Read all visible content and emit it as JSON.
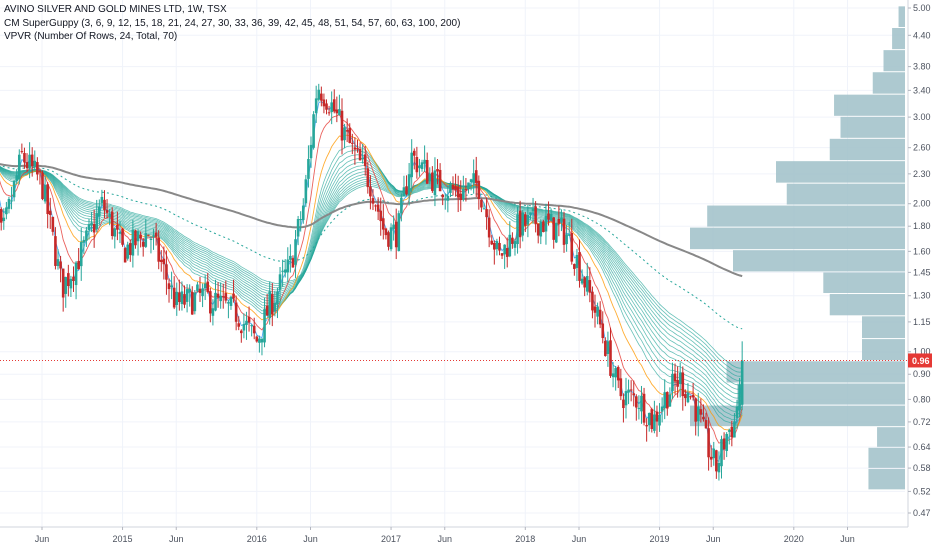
{
  "legend": {
    "title": "AVINO SILVER AND GOLD MINES LTD, 1W, TSX",
    "indicator1": "CM SuperGuppy (3, 6, 9, 12, 15, 18, 21, 24, 27, 30, 33, 36, 39, 42, 45, 48, 51, 54, 57, 60, 63, 100, 200)",
    "indicator2": "VPVR (Number Of Rows, 24, Total, 70)"
  },
  "colors": {
    "up": "#26a69a",
    "down": "#c62828",
    "vpvr": "#9fc0c8",
    "ema200": "#888888",
    "ema100": "#26a69a",
    "price_line": "#e53935",
    "guppy_fast": [
      "#2196f3",
      "#e53935",
      "#ff9800"
    ],
    "guppy_slow": "#26a69a"
  },
  "chart_data": {
    "type": "candlestick",
    "symbol": "AVINO SILVER AND GOLD MINES LTD",
    "interval": "1W",
    "exchange": "TSX",
    "y_axis": {
      "scale": "log",
      "range": [
        0.44,
        5.2
      ],
      "ticks": [
        "5.00",
        "4.40",
        "3.80",
        "3.40",
        "3.00",
        "2.60",
        "2.30",
        "2.00",
        "1.80",
        "1.60",
        "1.45",
        "1.30",
        "1.15",
        "1.00",
        "0.90",
        "0.80",
        "0.72",
        "0.64",
        "0.58",
        "0.52",
        "0.47"
      ]
    },
    "x_axis": {
      "ticks": [
        "Jun",
        "2015",
        "Jun",
        "2016",
        "Jun",
        "2017",
        "Jun",
        "2018",
        "Jun",
        "2019",
        "Jun",
        "2020",
        "Jun"
      ]
    },
    "last_price": 0.96,
    "last_price_label": "0.96",
    "price_anchors": [
      {
        "date": "2014.00",
        "value": 2.6
      },
      {
        "date": "2014.10",
        "value": 1.7
      },
      {
        "date": "2014.25",
        "value": 2.5
      },
      {
        "date": "2014.40",
        "value": 2.2
      },
      {
        "date": "2014.55",
        "value": 1.35
      },
      {
        "date": "2014.70",
        "value": 1.6
      },
      {
        "date": "2014.85",
        "value": 2.0
      },
      {
        "date": "2015.00",
        "value": 1.6
      },
      {
        "date": "2015.20",
        "value": 1.75
      },
      {
        "date": "2015.40",
        "value": 1.25
      },
      {
        "date": "2015.60",
        "value": 1.3
      },
      {
        "date": "2015.85",
        "value": 1.2
      },
      {
        "date": "2016.00",
        "value": 1.05
      },
      {
        "date": "2016.10",
        "value": 1.25
      },
      {
        "date": "2016.25",
        "value": 1.5
      },
      {
        "date": "2016.35",
        "value": 2.0
      },
      {
        "date": "2016.45",
        "value": 3.5
      },
      {
        "date": "2016.55",
        "value": 3.2
      },
      {
        "date": "2016.70",
        "value": 2.6
      },
      {
        "date": "2016.85",
        "value": 2.2
      },
      {
        "date": "2016.95",
        "value": 1.75
      },
      {
        "date": "2017.05",
        "value": 1.75
      },
      {
        "date": "2017.15",
        "value": 2.5
      },
      {
        "date": "2017.35",
        "value": 2.2
      },
      {
        "date": "2017.50",
        "value": 2.1
      },
      {
        "date": "2017.65",
        "value": 2.2
      },
      {
        "date": "2017.80",
        "value": 1.55
      },
      {
        "date": "2017.95",
        "value": 1.8
      },
      {
        "date": "2018.10",
        "value": 1.85
      },
      {
        "date": "2018.30",
        "value": 1.75
      },
      {
        "date": "2018.40",
        "value": 1.5
      },
      {
        "date": "2018.55",
        "value": 1.15
      },
      {
        "date": "2018.70",
        "value": 0.82
      },
      {
        "date": "2018.85",
        "value": 0.8
      },
      {
        "date": "2018.95",
        "value": 0.72
      },
      {
        "date": "2019.05",
        "value": 0.82
      },
      {
        "date": "2019.15",
        "value": 0.88
      },
      {
        "date": "2019.25",
        "value": 0.8
      },
      {
        "date": "2019.35",
        "value": 0.65
      },
      {
        "date": "2019.42",
        "value": 0.58
      },
      {
        "date": "2019.50",
        "value": 0.68
      },
      {
        "date": "2019.56",
        "value": 0.72
      },
      {
        "date": "2019.62",
        "value": 0.96
      }
    ],
    "volume_profile": [
      {
        "price": 0.55,
        "volume": 0.17
      },
      {
        "price": 0.61,
        "volume": 0.17
      },
      {
        "price": 0.67,
        "volume": 0.13
      },
      {
        "price": 0.74,
        "volume": 1.0
      },
      {
        "price": 0.82,
        "volume": 0.78
      },
      {
        "price": 0.91,
        "volume": 0.83
      },
      {
        "price": 1.01,
        "volume": 0.2
      },
      {
        "price": 1.12,
        "volume": 0.2
      },
      {
        "price": 1.25,
        "volume": 0.35
      },
      {
        "price": 1.38,
        "volume": 0.38
      },
      {
        "price": 1.53,
        "volume": 0.8
      },
      {
        "price": 1.7,
        "volume": 1.0
      },
      {
        "price": 1.89,
        "volume": 0.92
      },
      {
        "price": 2.09,
        "volume": 0.55
      },
      {
        "price": 2.32,
        "volume": 0.6
      },
      {
        "price": 2.58,
        "volume": 0.35
      },
      {
        "price": 2.86,
        "volume": 0.3
      },
      {
        "price": 3.17,
        "volume": 0.33
      },
      {
        "price": 3.52,
        "volume": 0.15
      },
      {
        "price": 3.91,
        "volume": 0.1
      },
      {
        "price": 4.33,
        "volume": 0.06
      },
      {
        "price": 4.81,
        "volume": 0.03
      }
    ]
  }
}
